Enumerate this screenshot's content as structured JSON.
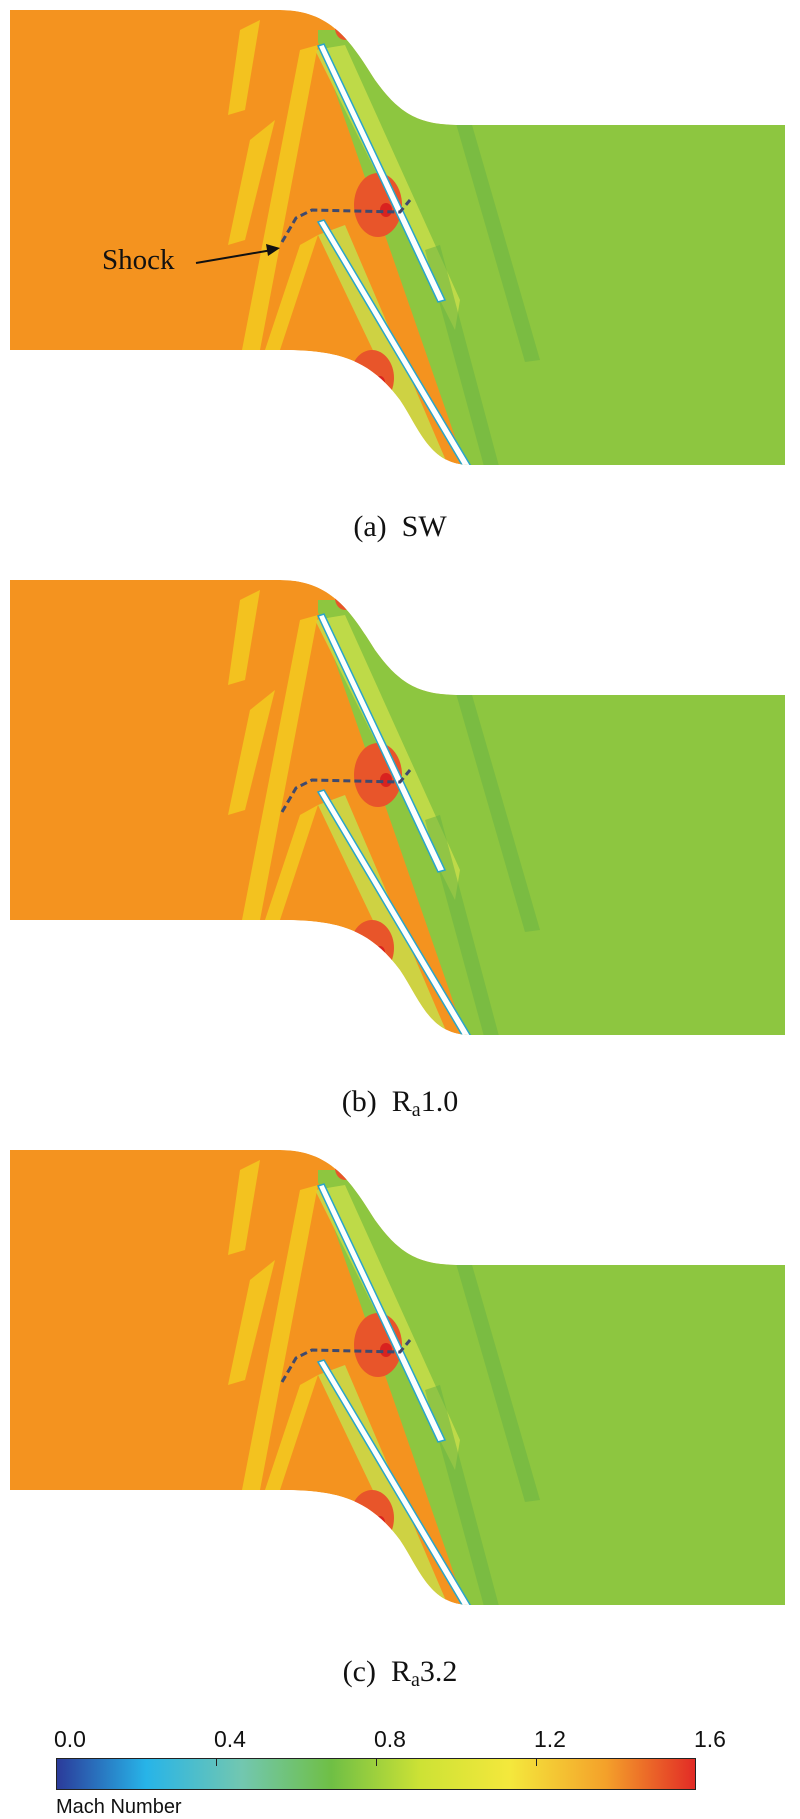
{
  "panels": [
    {
      "caption_prefix": "(a)",
      "caption_main": "SW",
      "caption_sub": "",
      "caption_suffix": ""
    },
    {
      "caption_prefix": "(b)",
      "caption_main": "R",
      "caption_sub": "a",
      "caption_suffix": "1.0"
    },
    {
      "caption_prefix": "(c)",
      "caption_main": "R",
      "caption_sub": "a",
      "caption_suffix": "3.2"
    }
  ],
  "annotation": {
    "shock_label": "Shock"
  },
  "colorbar": {
    "ticks": [
      "0.0",
      "0.4",
      "0.8",
      "1.2",
      "1.6"
    ],
    "title": "Mach Number",
    "colors": [
      "#2b3b9a",
      "#27b4e8",
      "#72c7b0",
      "#6fbf45",
      "#cde235",
      "#f4e83c",
      "#f4a12a",
      "#e22b26"
    ]
  },
  "field_colors": {
    "upstream": "#f4931f",
    "downstream": "#8dc640",
    "high_mach": "#e8552a",
    "peak": "#d9221f",
    "light_yellow": "#f3c81f",
    "yellow_green": "#c7dd4a",
    "dark_green": "#6cb543",
    "blade": "#ffffff",
    "blade_edge": "#2aa5c9"
  }
}
